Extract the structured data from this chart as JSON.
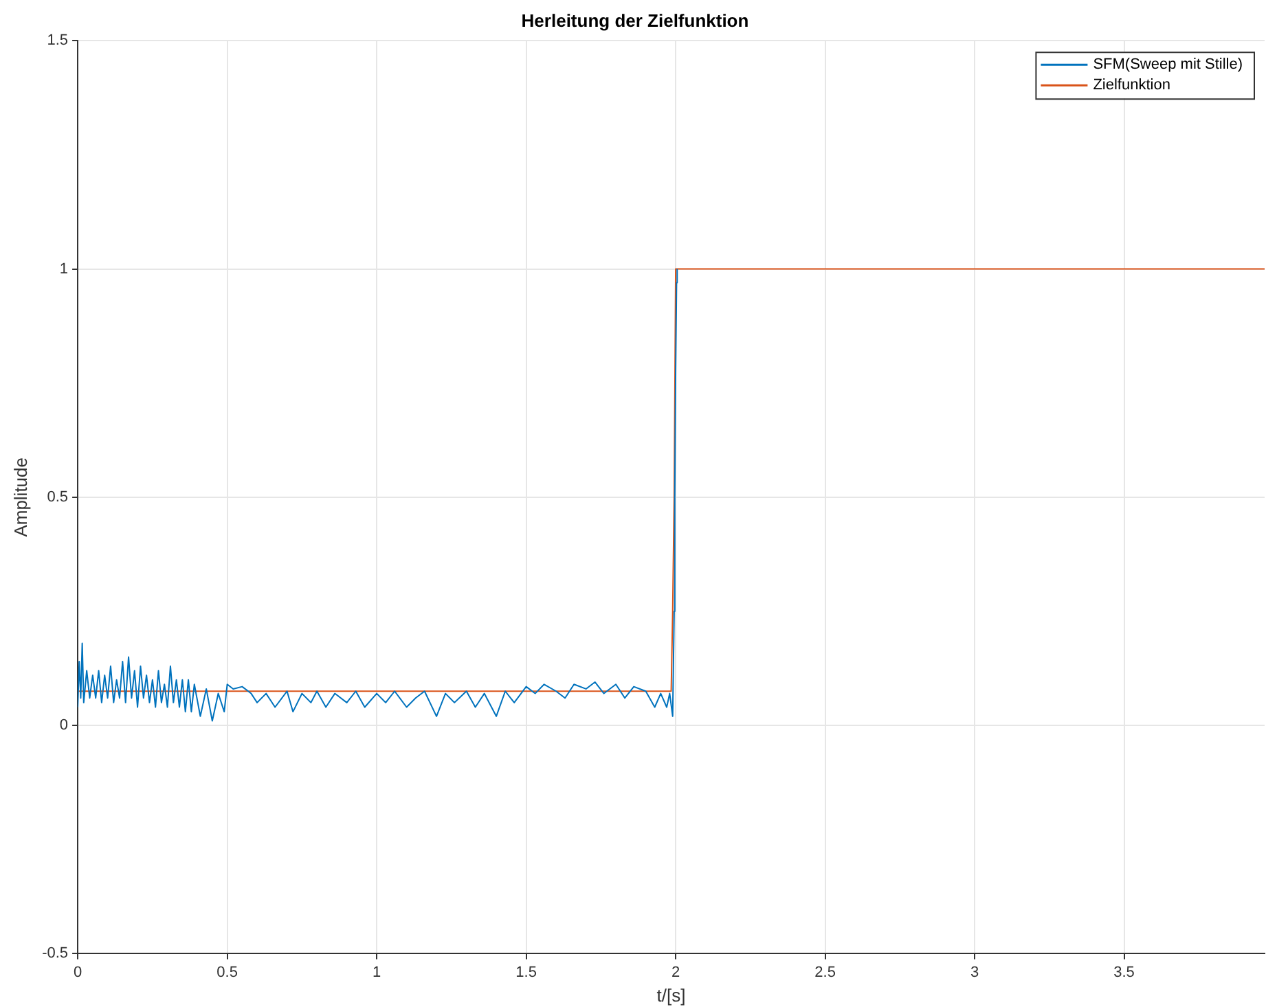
{
  "chart_data": {
    "type": "line",
    "title": "Herleitung der Zielfunktion",
    "xlabel": "t/[s]",
    "ylabel": "Amplitude",
    "xlim": [
      0,
      3.97
    ],
    "xticks": [
      0,
      0.5,
      1,
      1.5,
      2,
      2.5,
      3,
      3.5
    ],
    "ylim": [
      -0.5,
      1.5
    ],
    "yticks": [
      -0.5,
      0,
      0.5,
      1,
      1.5
    ],
    "grid": true,
    "legend": "top right",
    "marker": "none",
    "line_style": "solid",
    "series": [
      {
        "name": "SFM(Sweep mit Stille)",
        "color": "#0072bd",
        "x": [
          0,
          0.005,
          0.01,
          0.015,
          0.02,
          0.03,
          0.04,
          0.05,
          0.06,
          0.07,
          0.08,
          0.09,
          0.1,
          0.11,
          0.12,
          0.13,
          0.14,
          0.15,
          0.16,
          0.17,
          0.18,
          0.19,
          0.2,
          0.21,
          0.22,
          0.23,
          0.24,
          0.25,
          0.26,
          0.27,
          0.28,
          0.29,
          0.3,
          0.31,
          0.32,
          0.33,
          0.34,
          0.35,
          0.36,
          0.37,
          0.38,
          0.39,
          0.41,
          0.43,
          0.45,
          0.47,
          0.49,
          0.5,
          0.52,
          0.55,
          0.58,
          0.6,
          0.63,
          0.66,
          0.7,
          0.72,
          0.75,
          0.78,
          0.8,
          0.83,
          0.86,
          0.9,
          0.93,
          0.96,
          1.0,
          1.03,
          1.06,
          1.1,
          1.13,
          1.16,
          1.2,
          1.23,
          1.26,
          1.3,
          1.33,
          1.36,
          1.4,
          1.43,
          1.46,
          1.5,
          1.53,
          1.56,
          1.6,
          1.63,
          1.66,
          1.7,
          1.73,
          1.76,
          1.8,
          1.83,
          1.86,
          1.9,
          1.93,
          1.95,
          1.97,
          1.98,
          1.99,
          1.995,
          1.997,
          2.0,
          2.003,
          2.005
        ],
        "values": [
          0.04,
          0.14,
          0.06,
          0.18,
          0.05,
          0.12,
          0.06,
          0.11,
          0.06,
          0.12,
          0.05,
          0.11,
          0.06,
          0.13,
          0.05,
          0.1,
          0.06,
          0.14,
          0.05,
          0.15,
          0.06,
          0.12,
          0.04,
          0.13,
          0.06,
          0.11,
          0.05,
          0.1,
          0.04,
          0.12,
          0.05,
          0.09,
          0.04,
          0.13,
          0.05,
          0.1,
          0.04,
          0.1,
          0.03,
          0.1,
          0.03,
          0.09,
          0.02,
          0.08,
          0.01,
          0.07,
          0.03,
          0.09,
          0.08,
          0.085,
          0.07,
          0.05,
          0.07,
          0.04,
          0.075,
          0.03,
          0.07,
          0.05,
          0.075,
          0.04,
          0.07,
          0.05,
          0.075,
          0.04,
          0.07,
          0.05,
          0.075,
          0.04,
          0.06,
          0.075,
          0.02,
          0.07,
          0.05,
          0.075,
          0.04,
          0.07,
          0.02,
          0.075,
          0.05,
          0.085,
          0.07,
          0.09,
          0.075,
          0.06,
          0.09,
          0.08,
          0.095,
          0.07,
          0.09,
          0.06,
          0.085,
          0.075,
          0.04,
          0.07,
          0.04,
          0.07,
          0.02,
          0.25,
          0.5,
          0.78,
          0.97,
          1.0
        ]
      },
      {
        "name": "Zielfunktion",
        "color": "#d95319",
        "x": [
          0,
          1.985,
          1.99,
          1.995,
          2.0,
          3.97
        ],
        "values": [
          0.075,
          0.075,
          0.25,
          0.5,
          1,
          1
        ]
      }
    ]
  }
}
